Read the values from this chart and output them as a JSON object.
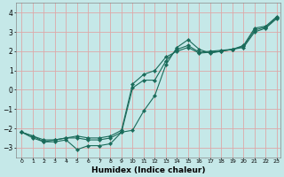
{
  "xlabel": "Humidex (Indice chaleur)",
  "bg_color": "#c5e8e8",
  "grid_color": "#dea8a8",
  "line_color": "#1a6b5a",
  "xlim": [
    -0.5,
    23.3
  ],
  "ylim": [
    -3.5,
    4.5
  ],
  "yticks": [
    -3,
    -2,
    -1,
    0,
    1,
    2,
    3,
    4
  ],
  "xticks": [
    0,
    1,
    2,
    3,
    4,
    5,
    6,
    7,
    8,
    9,
    10,
    11,
    12,
    13,
    14,
    15,
    16,
    17,
    18,
    19,
    20,
    21,
    22,
    23
  ],
  "line1_x": [
    0,
    1,
    2,
    3,
    4,
    5,
    6,
    7,
    8,
    9,
    10,
    11,
    12,
    13,
    14,
    15,
    16,
    17,
    18,
    19,
    20,
    21,
    22,
    23
  ],
  "line1_y": [
    -2.2,
    -2.5,
    -2.7,
    -2.7,
    -2.6,
    -3.1,
    -2.9,
    -2.9,
    -2.8,
    -2.2,
    -2.1,
    -1.1,
    -0.3,
    1.3,
    2.2,
    2.6,
    2.1,
    1.9,
    2.0,
    2.1,
    2.3,
    3.2,
    3.3,
    3.8
  ],
  "line2_x": [
    0,
    1,
    2,
    3,
    4,
    5,
    6,
    7,
    8,
    9,
    10,
    11,
    12,
    13,
    14,
    15,
    16,
    17,
    18,
    19,
    20,
    21,
    22,
    23
  ],
  "line2_y": [
    -2.2,
    -2.4,
    -2.7,
    -2.6,
    -2.5,
    -2.5,
    -2.6,
    -2.6,
    -2.5,
    -2.2,
    0.1,
    0.5,
    0.5,
    1.5,
    2.1,
    2.3,
    1.95,
    2.0,
    2.05,
    2.1,
    2.25,
    3.1,
    3.25,
    3.75
  ],
  "line3_x": [
    0,
    1,
    2,
    3,
    4,
    5,
    6,
    7,
    8,
    9,
    10,
    11,
    12,
    13,
    14,
    15,
    16,
    17,
    18,
    19,
    20,
    21,
    22,
    23
  ],
  "line3_y": [
    -2.2,
    -2.4,
    -2.6,
    -2.6,
    -2.5,
    -2.4,
    -2.5,
    -2.5,
    -2.4,
    -2.1,
    0.3,
    0.8,
    1.0,
    1.7,
    2.0,
    2.2,
    1.9,
    1.95,
    2.0,
    2.1,
    2.2,
    3.0,
    3.2,
    3.7
  ]
}
